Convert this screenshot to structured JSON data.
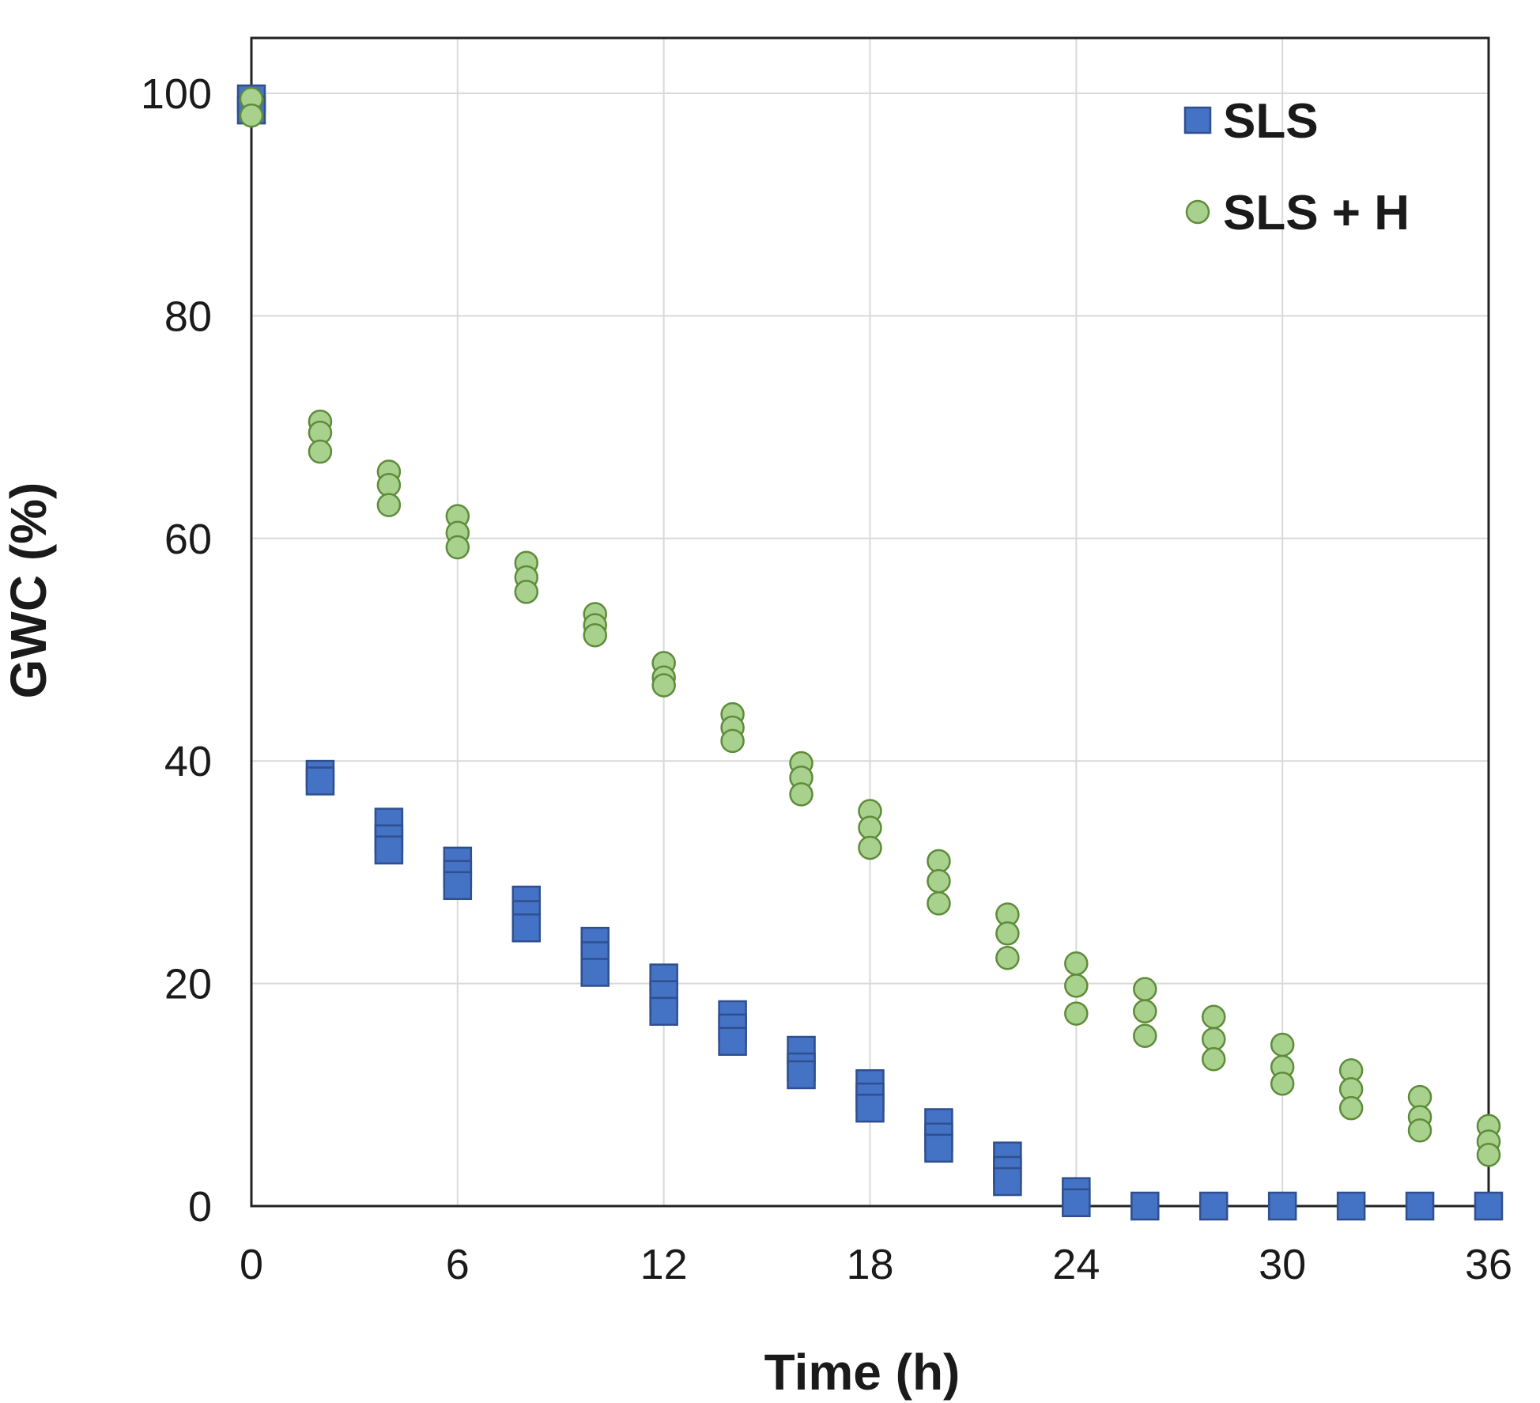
{
  "chart_data": {
    "type": "scatter",
    "xlabel": "Time (h)",
    "ylabel": "GWC (%)",
    "xlim": [
      0,
      36
    ],
    "ylim": [
      0,
      105
    ],
    "xticks": [
      0,
      6,
      12,
      18,
      24,
      30,
      36
    ],
    "xtick_labels": [
      "0",
      "6",
      "12",
      "18",
      "24",
      "30",
      "36"
    ],
    "yticks": [
      0,
      20,
      40,
      60,
      80,
      100
    ],
    "ytick_labels": [
      "0",
      "20",
      "40",
      "60",
      "80",
      "100"
    ],
    "grid": true,
    "legend_position": "top-right",
    "series": [
      {
        "name": "SLS",
        "marker": "square",
        "color": "#4472C4",
        "edge_color": "#2F4F8F",
        "points": [
          {
            "x": 0,
            "y": 99.5
          },
          {
            "x": 0,
            "y": 98.5
          },
          {
            "x": 2,
            "y": 38.8
          },
          {
            "x": 2,
            "y": 38.2
          },
          {
            "x": 4,
            "y": 34.5
          },
          {
            "x": 4,
            "y": 33.0
          },
          {
            "x": 4,
            "y": 32.0
          },
          {
            "x": 6,
            "y": 31.0
          },
          {
            "x": 6,
            "y": 29.8
          },
          {
            "x": 6,
            "y": 28.8
          },
          {
            "x": 8,
            "y": 27.5
          },
          {
            "x": 8,
            "y": 26.2
          },
          {
            "x": 8,
            "y": 25.0
          },
          {
            "x": 10,
            "y": 23.8
          },
          {
            "x": 10,
            "y": 22.5
          },
          {
            "x": 10,
            "y": 21.0
          },
          {
            "x": 12,
            "y": 20.5
          },
          {
            "x": 12,
            "y": 19.0
          },
          {
            "x": 12,
            "y": 17.5
          },
          {
            "x": 14,
            "y": 17.2
          },
          {
            "x": 14,
            "y": 16.0
          },
          {
            "x": 14,
            "y": 14.8
          },
          {
            "x": 16,
            "y": 14.0
          },
          {
            "x": 16,
            "y": 12.5
          },
          {
            "x": 16,
            "y": 11.8
          },
          {
            "x": 18,
            "y": 11.0
          },
          {
            "x": 18,
            "y": 9.8
          },
          {
            "x": 18,
            "y": 8.8
          },
          {
            "x": 20,
            "y": 7.5
          },
          {
            "x": 20,
            "y": 6.2
          },
          {
            "x": 20,
            "y": 5.2
          },
          {
            "x": 22,
            "y": 4.5
          },
          {
            "x": 22,
            "y": 3.2
          },
          {
            "x": 22,
            "y": 2.2
          },
          {
            "x": 24,
            "y": 1.3
          },
          {
            "x": 24,
            "y": 0.3
          },
          {
            "x": 26,
            "y": 0
          },
          {
            "x": 28,
            "y": 0
          },
          {
            "x": 30,
            "y": 0
          },
          {
            "x": 32,
            "y": 0
          },
          {
            "x": 34,
            "y": 0
          },
          {
            "x": 36,
            "y": 0
          }
        ]
      },
      {
        "name": "SLS + H",
        "marker": "circle",
        "color": "#A9D18E",
        "edge_color": "#5E8C3A",
        "points": [
          {
            "x": 0,
            "y": 99.5
          },
          {
            "x": 0,
            "y": 98.0
          },
          {
            "x": 2,
            "y": 70.5
          },
          {
            "x": 2,
            "y": 69.5
          },
          {
            "x": 2,
            "y": 67.8
          },
          {
            "x": 4,
            "y": 66.0
          },
          {
            "x": 4,
            "y": 64.8
          },
          {
            "x": 4,
            "y": 63.0
          },
          {
            "x": 6,
            "y": 62.0
          },
          {
            "x": 6,
            "y": 60.5
          },
          {
            "x": 6,
            "y": 59.2
          },
          {
            "x": 8,
            "y": 57.8
          },
          {
            "x": 8,
            "y": 56.5
          },
          {
            "x": 8,
            "y": 55.2
          },
          {
            "x": 10,
            "y": 53.2
          },
          {
            "x": 10,
            "y": 52.2
          },
          {
            "x": 10,
            "y": 51.3
          },
          {
            "x": 12,
            "y": 48.8
          },
          {
            "x": 12,
            "y": 47.5
          },
          {
            "x": 12,
            "y": 46.8
          },
          {
            "x": 14,
            "y": 44.2
          },
          {
            "x": 14,
            "y": 43.0
          },
          {
            "x": 14,
            "y": 41.8
          },
          {
            "x": 16,
            "y": 39.8
          },
          {
            "x": 16,
            "y": 38.5
          },
          {
            "x": 16,
            "y": 37.0
          },
          {
            "x": 18,
            "y": 35.5
          },
          {
            "x": 18,
            "y": 34.0
          },
          {
            "x": 18,
            "y": 32.2
          },
          {
            "x": 20,
            "y": 31.0
          },
          {
            "x": 20,
            "y": 29.2
          },
          {
            "x": 20,
            "y": 27.2
          },
          {
            "x": 22,
            "y": 26.2
          },
          {
            "x": 22,
            "y": 24.5
          },
          {
            "x": 22,
            "y": 22.3
          },
          {
            "x": 24,
            "y": 21.8
          },
          {
            "x": 24,
            "y": 19.8
          },
          {
            "x": 24,
            "y": 17.3
          },
          {
            "x": 26,
            "y": 19.5
          },
          {
            "x": 26,
            "y": 17.5
          },
          {
            "x": 26,
            "y": 15.3
          },
          {
            "x": 28,
            "y": 17.0
          },
          {
            "x": 28,
            "y": 15.0
          },
          {
            "x": 28,
            "y": 13.2
          },
          {
            "x": 30,
            "y": 14.5
          },
          {
            "x": 30,
            "y": 12.5
          },
          {
            "x": 30,
            "y": 11.0
          },
          {
            "x": 32,
            "y": 12.2
          },
          {
            "x": 32,
            "y": 10.5
          },
          {
            "x": 32,
            "y": 8.8
          },
          {
            "x": 34,
            "y": 9.8
          },
          {
            "x": 34,
            "y": 8.0
          },
          {
            "x": 34,
            "y": 6.8
          },
          {
            "x": 36,
            "y": 7.2
          },
          {
            "x": 36,
            "y": 5.8
          },
          {
            "x": 36,
            "y": 4.6
          }
        ]
      }
    ]
  }
}
